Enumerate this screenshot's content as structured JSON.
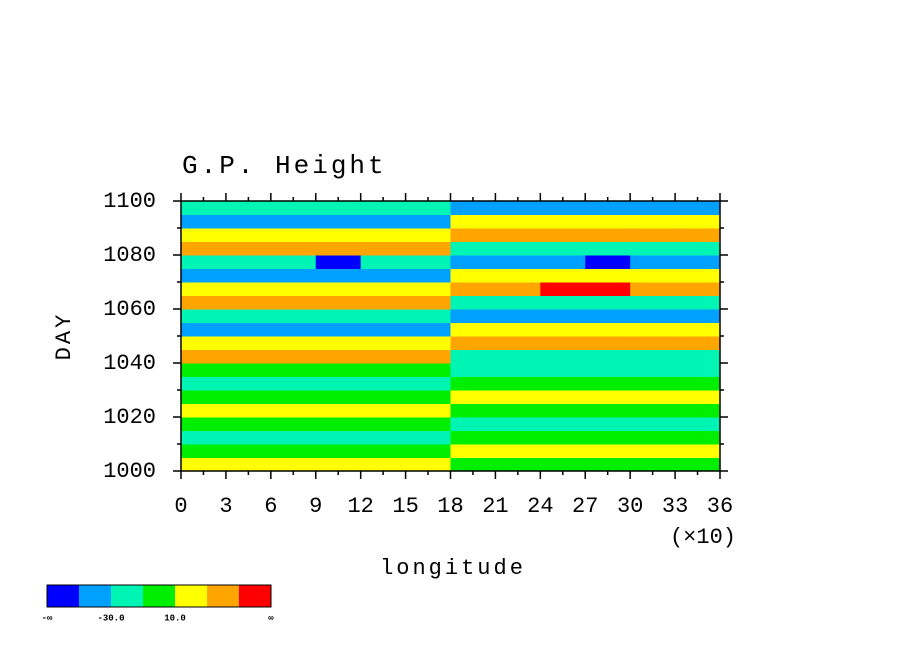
{
  "chart_data": {
    "type": "contour",
    "title": "G.P. Height",
    "xlabel": "longitude",
    "ylabel": "DAY",
    "x_multiplier_label": "(×10)",
    "x": [
      1.5,
      4.5,
      7.5,
      10.5,
      13.5,
      16.5,
      19.5,
      22.5,
      25.5,
      28.5,
      31.5,
      34.5
    ],
    "y": [
      1002.5,
      1007.5,
      1012.5,
      1017.5,
      1022.5,
      1027.5,
      1032.5,
      1037.5,
      1042.5,
      1047.5,
      1052.5,
      1057.5,
      1062.5,
      1067.5,
      1072.5,
      1077.5,
      1082.5,
      1087.5,
      1092.5,
      1097.5
    ],
    "z": [
      [
        20,
        20,
        20,
        20,
        20,
        20,
        0,
        0,
        0,
        0,
        0,
        0
      ],
      [
        0,
        0,
        0,
        0,
        0,
        0,
        20,
        20,
        20,
        20,
        20,
        20
      ],
      [
        -20,
        -20,
        -20,
        -20,
        -20,
        -20,
        0,
        0,
        0,
        0,
        0,
        0
      ],
      [
        0,
        0,
        0,
        0,
        0,
        0,
        -20,
        -20,
        -20,
        -20,
        -20,
        -20
      ],
      [
        20,
        20,
        20,
        20,
        20,
        20,
        0,
        0,
        0,
        0,
        0,
        0
      ],
      [
        0,
        0,
        0,
        0,
        0,
        0,
        20,
        20,
        20,
        20,
        20,
        20
      ],
      [
        -20,
        -20,
        -20,
        -20,
        -20,
        -20,
        0,
        0,
        0,
        0,
        0,
        0
      ],
      [
        0,
        0,
        0,
        0,
        0,
        0,
        -20,
        -20,
        -20,
        -20,
        -20,
        -20
      ],
      [
        40,
        40,
        40,
        40,
        40,
        40,
        -15,
        -15,
        -15,
        -15,
        -15,
        -15
      ],
      [
        15,
        15,
        15,
        15,
        15,
        15,
        40,
        40,
        40,
        40,
        40,
        40
      ],
      [
        -40,
        -40,
        -40,
        -40,
        -40,
        -40,
        15,
        15,
        15,
        15,
        15,
        15
      ],
      [
        -15,
        -15,
        -15,
        -15,
        -15,
        -15,
        -40,
        -40,
        -40,
        -40,
        -40,
        -40
      ],
      [
        40,
        40,
        40,
        40,
        40,
        40,
        -15,
        -15,
        -15,
        -15,
        -15,
        -15
      ],
      [
        15,
        15,
        15,
        15,
        15,
        15,
        40,
        40,
        55,
        55,
        40,
        40
      ],
      [
        -40,
        -40,
        -40,
        -40,
        -40,
        -40,
        15,
        15,
        15,
        15,
        15,
        15
      ],
      [
        -15,
        -15,
        -15,
        -55,
        -15,
        -15,
        -40,
        -40,
        -40,
        -55,
        -40,
        -40
      ],
      [
        40,
        40,
        40,
        40,
        40,
        40,
        -15,
        -15,
        -15,
        -15,
        -15,
        -15
      ],
      [
        15,
        15,
        15,
        15,
        15,
        15,
        40,
        40,
        40,
        40,
        40,
        40
      ],
      [
        -40,
        -40,
        -40,
        -40,
        -40,
        -40,
        15,
        15,
        15,
        15,
        15,
        15
      ],
      [
        -15,
        -15,
        -15,
        -15,
        -15,
        -15,
        -40,
        -40,
        -40,
        -40,
        -40,
        -40
      ]
    ],
    "xlim": [
      0,
      36
    ],
    "ylim": [
      1000,
      1100
    ],
    "xticks": [
      0,
      3,
      6,
      9,
      12,
      15,
      18,
      21,
      24,
      27,
      30,
      33,
      36
    ],
    "xminorticks": [
      1.5,
      4.5,
      7.5,
      10.5,
      13.5,
      16.5,
      19.5,
      22.5,
      25.5,
      28.5,
      31.5,
      34.5
    ],
    "yticks": [
      1000,
      1020,
      1040,
      1060,
      1080,
      1100
    ],
    "yminorticks": [
      1010,
      1030,
      1050,
      1070,
      1090
    ],
    "colorbar": {
      "levels": [
        -50,
        -30,
        -10,
        10,
        30,
        50
      ],
      "colors": [
        "#0000ff",
        "#00a0ff",
        "#00f5b4",
        "#00ee00",
        "#ffff00",
        "#ffa500",
        "#ff0000"
      ],
      "labels": [
        {
          "value": null,
          "label": "-∞"
        },
        {
          "value": -30,
          "label": "-30.0"
        },
        {
          "value": 10,
          "label": "10.0"
        },
        {
          "value": null,
          "label": "∞"
        }
      ]
    }
  }
}
